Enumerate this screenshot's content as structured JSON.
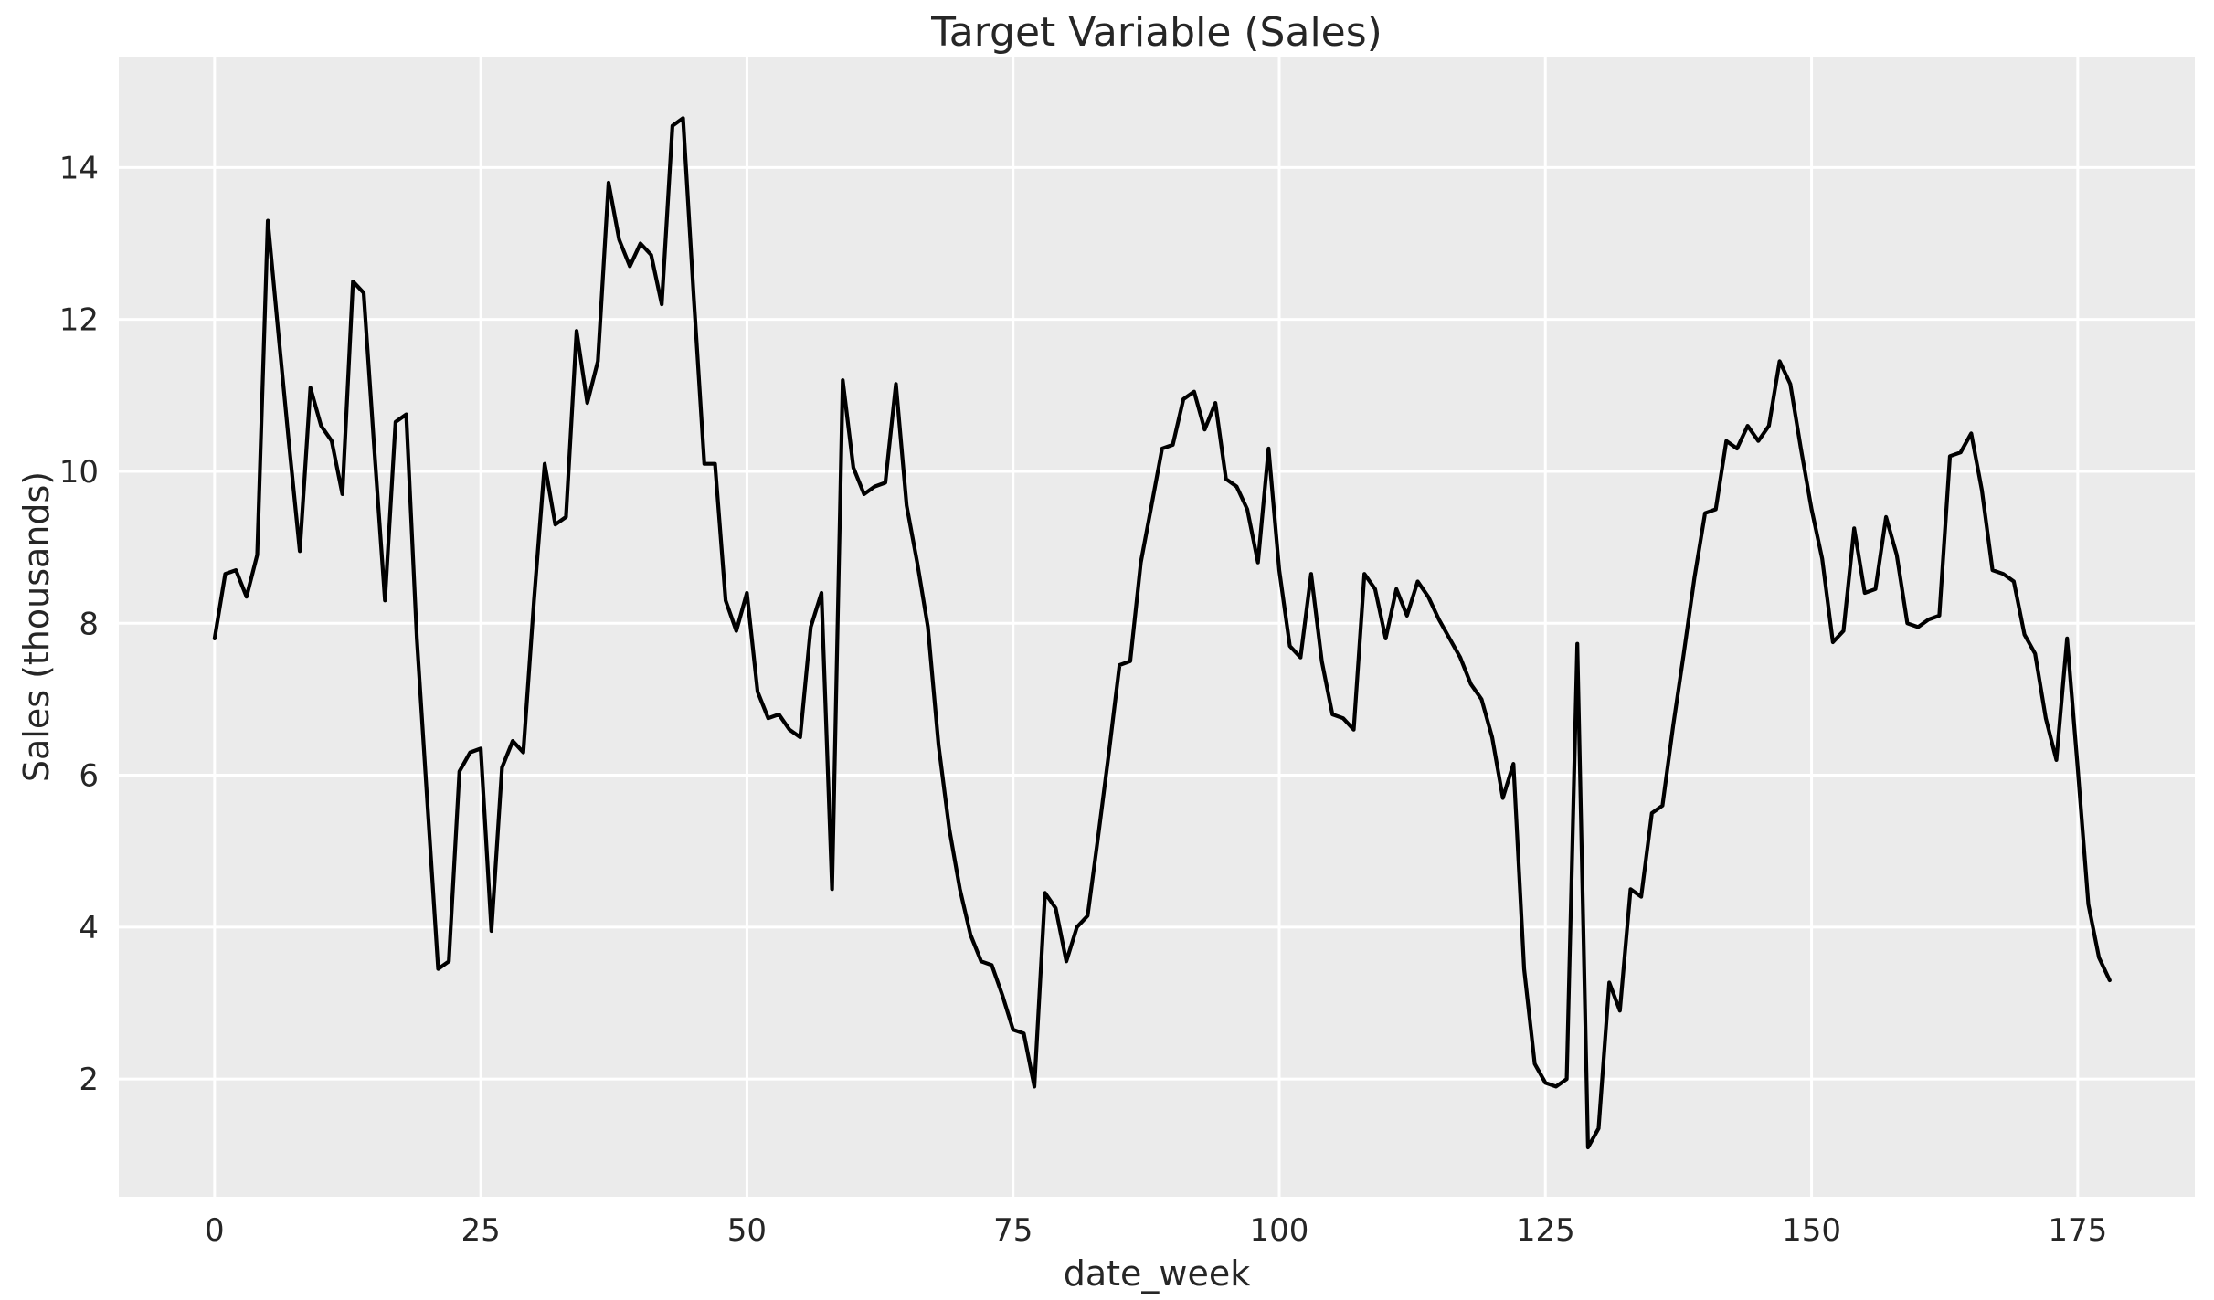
{
  "title": "Target Variable (Sales)",
  "axes": {
    "xlabel": "date_week",
    "ylabel": "Sales (thousands)"
  },
  "colors": {
    "figure_background": "#ffffff",
    "plot_background": "#ebebeb",
    "gridline": "#ffffff",
    "line": "#000000",
    "text": "#262626"
  },
  "chart_data": {
    "type": "line",
    "title": "Target Variable (Sales)",
    "xlabel": "date_week",
    "ylabel": "Sales (thousands)",
    "x_tick_labels": [
      0,
      25,
      50,
      75,
      100,
      125,
      150,
      175
    ],
    "y_tick_labels": [
      2,
      4,
      6,
      8,
      10,
      12,
      14
    ],
    "xlim": [
      -9,
      186
    ],
    "ylim": [
      0.45,
      15.46
    ],
    "grid": true,
    "legend_position": "none",
    "series": [
      {
        "name": "Sales",
        "x_start": 0,
        "x_step": 1,
        "values": [
          7.8,
          8.65,
          8.7,
          8.35,
          8.9,
          13.3,
          11.8,
          10.35,
          8.95,
          11.1,
          10.6,
          10.4,
          9.7,
          12.5,
          12.35,
          10.3,
          8.3,
          10.65,
          10.75,
          7.8,
          5.6,
          3.45,
          3.55,
          6.05,
          6.3,
          6.35,
          3.95,
          6.1,
          6.45,
          6.3,
          8.3,
          10.1,
          9.3,
          9.4,
          11.85,
          10.9,
          11.45,
          13.8,
          13.05,
          12.7,
          13.0,
          12.85,
          12.2,
          14.55,
          14.65,
          12.3,
          10.1,
          10.1,
          8.3,
          7.9,
          8.4,
          7.1,
          6.75,
          6.8,
          6.6,
          6.5,
          7.95,
          8.4,
          4.5,
          11.2,
          10.05,
          9.7,
          9.8,
          9.85,
          11.15,
          9.55,
          8.8,
          7.95,
          6.4,
          5.3,
          4.5,
          3.9,
          3.55,
          3.5,
          3.1,
          2.65,
          2.6,
          1.9,
          4.45,
          4.25,
          3.55,
          4.0,
          4.15,
          5.2,
          6.3,
          7.45,
          7.5,
          8.8,
          9.55,
          10.3,
          10.35,
          10.95,
          11.05,
          10.55,
          10.9,
          9.9,
          9.8,
          9.5,
          8.8,
          10.3,
          8.7,
          7.7,
          7.55,
          8.65,
          7.5,
          6.8,
          6.75,
          6.6,
          8.65,
          8.45,
          7.8,
          8.45,
          8.1,
          8.55,
          8.35,
          8.05,
          7.8,
          7.55,
          7.2,
          7.0,
          6.5,
          5.7,
          6.15,
          3.45,
          2.2,
          1.95,
          1.9,
          2.0,
          7.73,
          1.1,
          1.35,
          3.27,
          2.9,
          4.5,
          4.4,
          5.5,
          5.6,
          6.65,
          7.6,
          8.6,
          9.45,
          9.5,
          10.4,
          10.3,
          10.6,
          10.4,
          10.6,
          11.45,
          11.15,
          10.3,
          9.5,
          8.85,
          7.75,
          7.9,
          9.25,
          8.4,
          8.45,
          9.4,
          8.9,
          8.0,
          7.95,
          8.05,
          8.1,
          10.2,
          10.25,
          10.5,
          9.75,
          8.7,
          8.65,
          8.55,
          7.85,
          7.6,
          6.75,
          6.2,
          7.8,
          6.1,
          4.3,
          3.6,
          3.3
        ]
      }
    ]
  }
}
